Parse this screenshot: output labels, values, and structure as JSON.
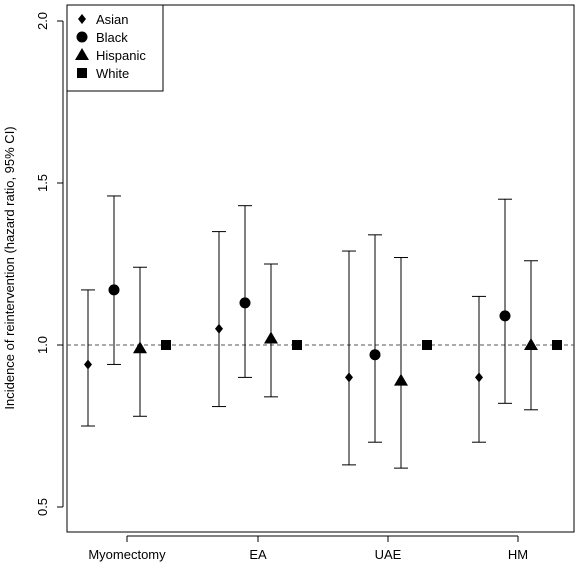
{
  "chart_data": {
    "type": "scatter",
    "subtype": "point-with-confidence-interval",
    "ylabel": "Incidence of reintervention (hazard ratio, 95% CI)",
    "xlabel": "",
    "categories": [
      "Myomectomy",
      "EA",
      "UAE",
      "HM"
    ],
    "ylim": [
      0.45,
      2.0
    ],
    "yticks": [
      0.5,
      1.0,
      1.5,
      2.0
    ],
    "ytick_labels": [
      "0.5",
      "1.0",
      "1.5",
      "2.0"
    ],
    "reference_line": {
      "y": 1.0,
      "style": "dashed",
      "color": "#555555"
    },
    "legend_position": "top-left",
    "series": [
      {
        "name": "Asian",
        "marker": "diamond-icon",
        "values": [
          0.94,
          1.05,
          0.9,
          0.9
        ],
        "lower": [
          0.75,
          0.81,
          0.63,
          0.7
        ],
        "upper": [
          1.17,
          1.35,
          1.29,
          1.15
        ]
      },
      {
        "name": "Black",
        "marker": "circle-icon",
        "values": [
          1.17,
          1.13,
          0.97,
          1.09
        ],
        "lower": [
          0.94,
          0.9,
          0.7,
          0.82
        ],
        "upper": [
          1.46,
          1.43,
          1.34,
          1.45
        ]
      },
      {
        "name": "Hispanic",
        "marker": "triangle-icon",
        "values": [
          0.99,
          1.02,
          0.89,
          1.0
        ],
        "lower": [
          0.78,
          0.84,
          0.62,
          0.8
        ],
        "upper": [
          1.24,
          1.25,
          1.27,
          1.26
        ]
      },
      {
        "name": "White",
        "marker": "square-icon",
        "values": [
          1.0,
          1.0,
          1.0,
          1.0
        ],
        "lower": [
          null,
          null,
          null,
          null
        ],
        "upper": [
          null,
          null,
          null,
          null
        ]
      }
    ],
    "colors": {
      "marks": "#000000",
      "reference": "#555555",
      "background": "#ffffff"
    }
  }
}
